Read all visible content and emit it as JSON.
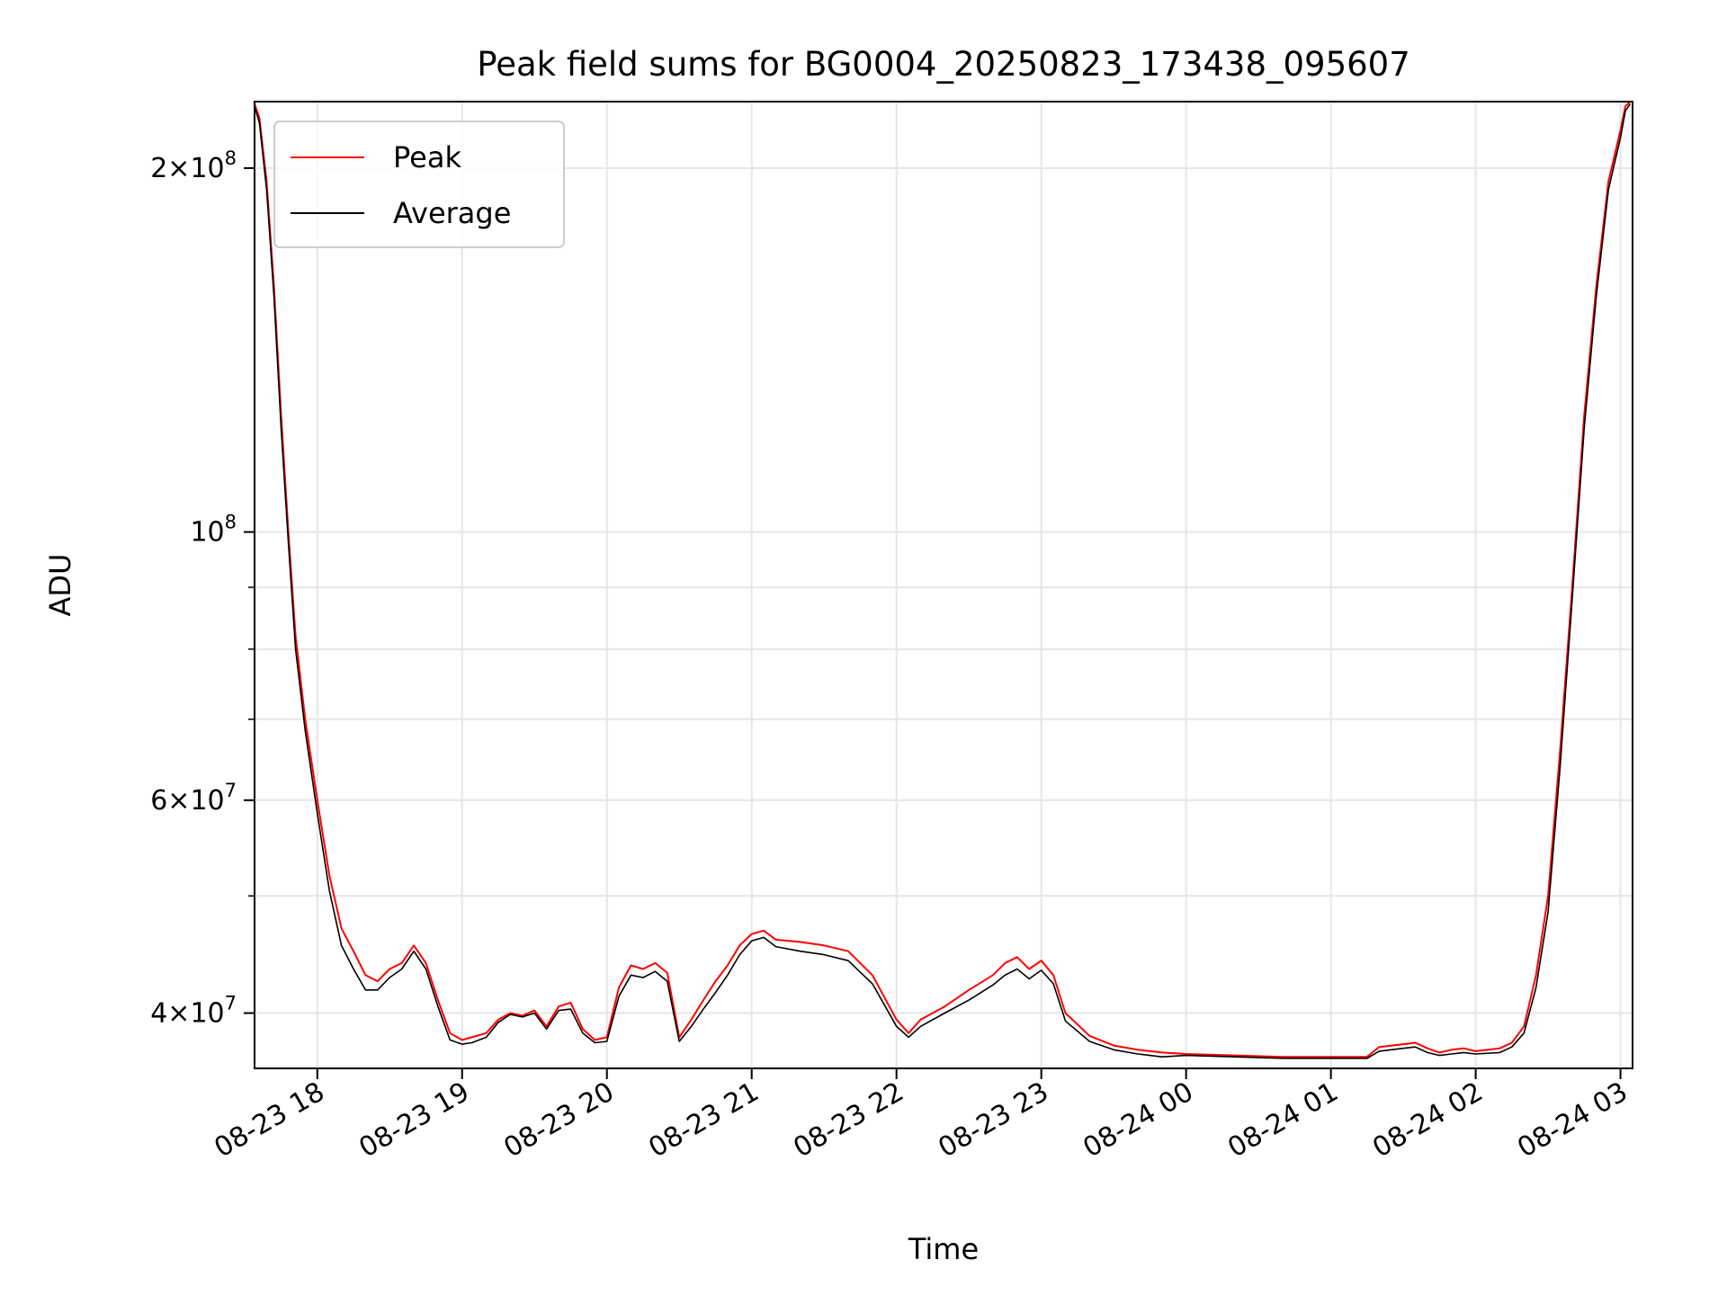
{
  "chart_data": {
    "type": "line",
    "title": "Peak field sums for BG0004_20250823_173438_095607",
    "xlabel": "Time",
    "ylabel": "ADU",
    "y_scale": "log",
    "ylim": [
      36000000,
      227000000
    ],
    "xlim": [
      "2025-08-23 17:34",
      "2025-08-24 03:05"
    ],
    "x_ticks": [
      {
        "label": "08-23 18",
        "t": "2025-08-23 18:00"
      },
      {
        "label": "08-23 19",
        "t": "2025-08-23 19:00"
      },
      {
        "label": "08-23 20",
        "t": "2025-08-23 20:00"
      },
      {
        "label": "08-23 21",
        "t": "2025-08-23 21:00"
      },
      {
        "label": "08-23 22",
        "t": "2025-08-23 22:00"
      },
      {
        "label": "08-23 23",
        "t": "2025-08-23 23:00"
      },
      {
        "label": "08-24 00",
        "t": "2025-08-24 00:00"
      },
      {
        "label": "08-24 01",
        "t": "2025-08-24 01:00"
      },
      {
        "label": "08-24 02",
        "t": "2025-08-24 02:00"
      },
      {
        "label": "08-24 03",
        "t": "2025-08-24 03:00"
      }
    ],
    "y_ticks": [
      {
        "label": "2×10⁸",
        "mant": "2",
        "exp": "8",
        "value": 200000000
      },
      {
        "label": "10⁸",
        "mant": "",
        "exp": "8",
        "value": 100000000
      },
      {
        "label": "6×10⁷",
        "mant": "6",
        "exp": "7",
        "value": 60000000
      },
      {
        "label": "4×10⁷",
        "mant": "4",
        "exp": "7",
        "value": 40000000
      }
    ],
    "y_minor_ticks": [
      50000000,
      70000000,
      80000000,
      90000000
    ],
    "grid": true,
    "legend_position": "top-left",
    "series": [
      {
        "name": "Peak",
        "color": "#ff0000",
        "x": [
          "2025-08-23 17:34",
          "2025-08-23 17:36",
          "2025-08-23 17:39",
          "2025-08-23 17:42",
          "2025-08-23 17:45",
          "2025-08-23 17:48",
          "2025-08-23 17:51",
          "2025-08-23 17:55",
          "2025-08-23 18:00",
          "2025-08-23 18:05",
          "2025-08-23 18:10",
          "2025-08-23 18:15",
          "2025-08-23 18:20",
          "2025-08-23 18:25",
          "2025-08-23 18:30",
          "2025-08-23 18:35",
          "2025-08-23 18:40",
          "2025-08-23 18:45",
          "2025-08-23 18:50",
          "2025-08-23 18:55",
          "2025-08-23 19:00",
          "2025-08-23 19:04",
          "2025-08-23 19:10",
          "2025-08-23 19:15",
          "2025-08-23 19:20",
          "2025-08-23 19:25",
          "2025-08-23 19:30",
          "2025-08-23 19:35",
          "2025-08-23 19:40",
          "2025-08-23 19:45",
          "2025-08-23 19:50",
          "2025-08-23 19:55",
          "2025-08-23 20:00",
          "2025-08-23 20:05",
          "2025-08-23 20:10",
          "2025-08-23 20:15",
          "2025-08-23 20:20",
          "2025-08-23 20:25",
          "2025-08-23 20:30",
          "2025-08-23 20:35",
          "2025-08-23 20:40",
          "2025-08-23 20:45",
          "2025-08-23 20:50",
          "2025-08-23 20:55",
          "2025-08-23 21:00",
          "2025-08-23 21:05",
          "2025-08-23 21:10",
          "2025-08-23 21:20",
          "2025-08-23 21:30",
          "2025-08-23 21:40",
          "2025-08-23 21:50",
          "2025-08-23 22:00",
          "2025-08-23 22:05",
          "2025-08-23 22:10",
          "2025-08-23 22:20",
          "2025-08-23 22:30",
          "2025-08-23 22:40",
          "2025-08-23 22:45",
          "2025-08-23 22:50",
          "2025-08-23 22:55",
          "2025-08-23 23:00",
          "2025-08-23 23:05",
          "2025-08-23 23:10",
          "2025-08-23 23:20",
          "2025-08-23 23:30",
          "2025-08-23 23:40",
          "2025-08-23 23:50",
          "2025-08-24 00:00",
          "2025-08-24 00:20",
          "2025-08-24 00:40",
          "2025-08-24 01:00",
          "2025-08-24 01:15",
          "2025-08-24 01:20",
          "2025-08-24 01:30",
          "2025-08-24 01:35",
          "2025-08-24 01:40",
          "2025-08-24 01:45",
          "2025-08-24 01:50",
          "2025-08-24 01:55",
          "2025-08-24 02:00",
          "2025-08-24 02:10",
          "2025-08-24 02:15",
          "2025-08-24 02:20",
          "2025-08-24 02:25",
          "2025-08-24 02:30",
          "2025-08-24 02:35",
          "2025-08-24 02:40",
          "2025-08-24 02:45",
          "2025-08-24 02:50",
          "2025-08-24 02:55",
          "2025-08-24 03:00",
          "2025-08-24 03:02",
          "2025-08-24 03:04"
        ],
        "y": [
          226000000,
          220000000,
          195000000,
          160000000,
          125000000,
          100000000,
          82000000,
          70000000,
          60000000,
          52000000,
          47000000,
          45000000,
          43000000,
          42500000,
          43500000,
          44000000,
          45500000,
          44000000,
          41000000,
          38500000,
          38000000,
          38200000,
          38500000,
          39500000,
          40000000,
          39800000,
          40200000,
          39000000,
          40500000,
          40800000,
          38800000,
          38000000,
          38200000,
          42000000,
          43800000,
          43500000,
          44000000,
          43200000,
          38200000,
          39500000,
          41000000,
          42500000,
          43800000,
          45500000,
          46500000,
          46800000,
          46000000,
          45800000,
          45500000,
          45000000,
          43000000,
          39500000,
          38500000,
          39500000,
          40500000,
          41800000,
          43000000,
          44000000,
          44500000,
          43500000,
          44200000,
          43000000,
          40000000,
          38300000,
          37600000,
          37300000,
          37100000,
          37000000,
          36900000,
          36800000,
          36800000,
          36800000,
          37500000,
          37700000,
          37800000,
          37400000,
          37100000,
          37300000,
          37400000,
          37200000,
          37400000,
          37800000,
          39000000,
          43000000,
          50000000,
          66000000,
          90000000,
          125000000,
          160000000,
          195000000,
          215000000,
          225000000,
          227000000
        ]
      },
      {
        "name": "Average",
        "color": "#000000",
        "x": [
          "2025-08-23 17:34",
          "2025-08-23 17:36",
          "2025-08-23 17:39",
          "2025-08-23 17:42",
          "2025-08-23 17:45",
          "2025-08-23 17:48",
          "2025-08-23 17:51",
          "2025-08-23 17:55",
          "2025-08-23 18:00",
          "2025-08-23 18:05",
          "2025-08-23 18:10",
          "2025-08-23 18:15",
          "2025-08-23 18:20",
          "2025-08-23 18:25",
          "2025-08-23 18:30",
          "2025-08-23 18:35",
          "2025-08-23 18:40",
          "2025-08-23 18:45",
          "2025-08-23 18:50",
          "2025-08-23 18:55",
          "2025-08-23 19:00",
          "2025-08-23 19:04",
          "2025-08-23 19:10",
          "2025-08-23 19:15",
          "2025-08-23 19:20",
          "2025-08-23 19:25",
          "2025-08-23 19:30",
          "2025-08-23 19:35",
          "2025-08-23 19:40",
          "2025-08-23 19:45",
          "2025-08-23 19:50",
          "2025-08-23 19:55",
          "2025-08-23 20:00",
          "2025-08-23 20:05",
          "2025-08-23 20:10",
          "2025-08-23 20:15",
          "2025-08-23 20:20",
          "2025-08-23 20:25",
          "2025-08-23 20:30",
          "2025-08-23 20:35",
          "2025-08-23 20:40",
          "2025-08-23 20:45",
          "2025-08-23 20:50",
          "2025-08-23 20:55",
          "2025-08-23 21:00",
          "2025-08-23 21:05",
          "2025-08-23 21:10",
          "2025-08-23 21:20",
          "2025-08-23 21:30",
          "2025-08-23 21:40",
          "2025-08-23 21:50",
          "2025-08-23 22:00",
          "2025-08-23 22:05",
          "2025-08-23 22:10",
          "2025-08-23 22:20",
          "2025-08-23 22:30",
          "2025-08-23 22:40",
          "2025-08-23 22:45",
          "2025-08-23 22:50",
          "2025-08-23 22:55",
          "2025-08-23 23:00",
          "2025-08-23 23:05",
          "2025-08-23 23:10",
          "2025-08-23 23:20",
          "2025-08-23 23:30",
          "2025-08-23 23:40",
          "2025-08-23 23:50",
          "2025-08-24 00:00",
          "2025-08-24 00:20",
          "2025-08-24 00:40",
          "2025-08-24 01:00",
          "2025-08-24 01:15",
          "2025-08-24 01:20",
          "2025-08-24 01:30",
          "2025-08-24 01:35",
          "2025-08-24 01:40",
          "2025-08-24 01:45",
          "2025-08-24 01:50",
          "2025-08-24 01:55",
          "2025-08-24 02:00",
          "2025-08-24 02:10",
          "2025-08-24 02:15",
          "2025-08-24 02:20",
          "2025-08-24 02:25",
          "2025-08-24 02:30",
          "2025-08-24 02:35",
          "2025-08-24 02:40",
          "2025-08-24 02:45",
          "2025-08-24 02:50",
          "2025-08-24 02:55",
          "2025-08-24 03:00",
          "2025-08-24 03:02",
          "2025-08-24 03:04"
        ],
        "y": [
          225000000,
          218000000,
          192000000,
          157000000,
          122000000,
          98000000,
          80000000,
          68500000,
          58500000,
          50500000,
          45500000,
          43500000,
          41800000,
          41800000,
          42800000,
          43500000,
          45000000,
          43500000,
          40500000,
          38000000,
          37700000,
          37800000,
          38200000,
          39300000,
          39900000,
          39700000,
          40000000,
          38800000,
          40200000,
          40300000,
          38500000,
          37800000,
          37900000,
          41300000,
          43000000,
          42800000,
          43300000,
          42500000,
          37900000,
          39000000,
          40300000,
          41600000,
          43000000,
          44700000,
          45900000,
          46200000,
          45400000,
          45000000,
          44700000,
          44200000,
          42300000,
          39000000,
          38200000,
          39000000,
          40000000,
          41000000,
          42200000,
          43000000,
          43500000,
          42700000,
          43400000,
          42300000,
          39400000,
          37900000,
          37300000,
          37000000,
          36800000,
          36900000,
          36800000,
          36700000,
          36700000,
          36700000,
          37200000,
          37400000,
          37500000,
          37100000,
          36900000,
          37000000,
          37100000,
          37000000,
          37100000,
          37500000,
          38500000,
          42000000,
          48500000,
          64000000,
          88000000,
          122000000,
          157000000,
          192000000,
          212000000,
          223000000,
          226000000
        ]
      }
    ]
  }
}
